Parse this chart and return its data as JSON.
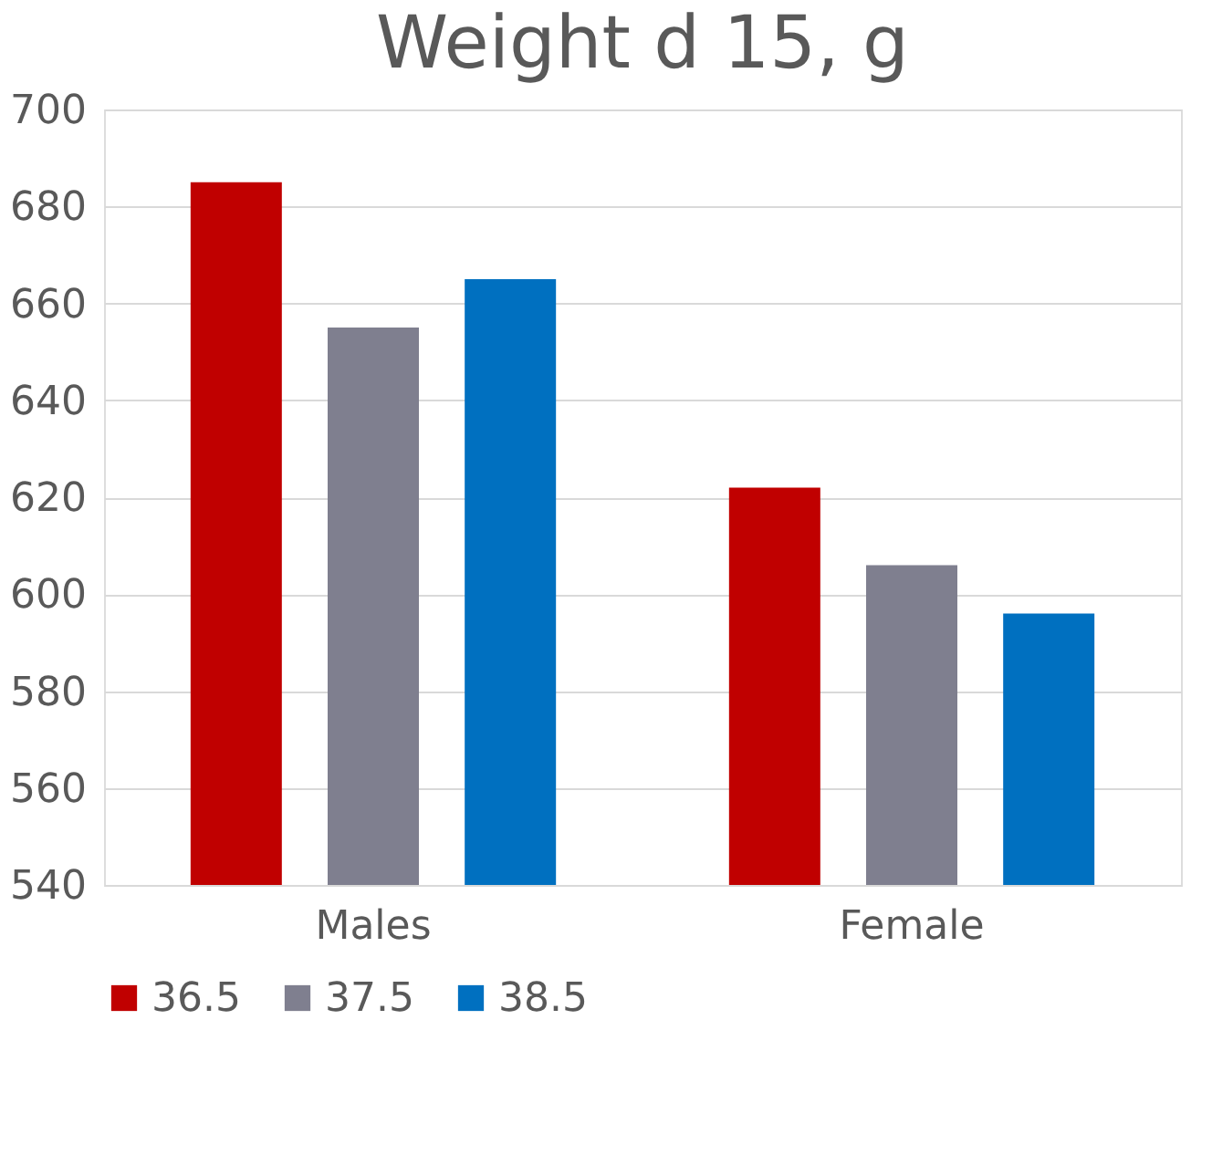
{
  "chart_data": {
    "type": "bar",
    "title": "Weight d 15, g",
    "categories": [
      "Males",
      "Female"
    ],
    "series": [
      {
        "name": "36.5",
        "color": "#c00000",
        "values": [
          685,
          622
        ]
      },
      {
        "name": "37.5",
        "color": "#7f7f8f",
        "values": [
          655,
          606
        ]
      },
      {
        "name": "38.5",
        "color": "#0070c0",
        "values": [
          665,
          596
        ]
      }
    ],
    "ylim": [
      540,
      700
    ],
    "yticks": [
      540,
      560,
      580,
      600,
      620,
      640,
      660,
      680,
      700
    ],
    "grid": "y",
    "legend": "bottom"
  }
}
